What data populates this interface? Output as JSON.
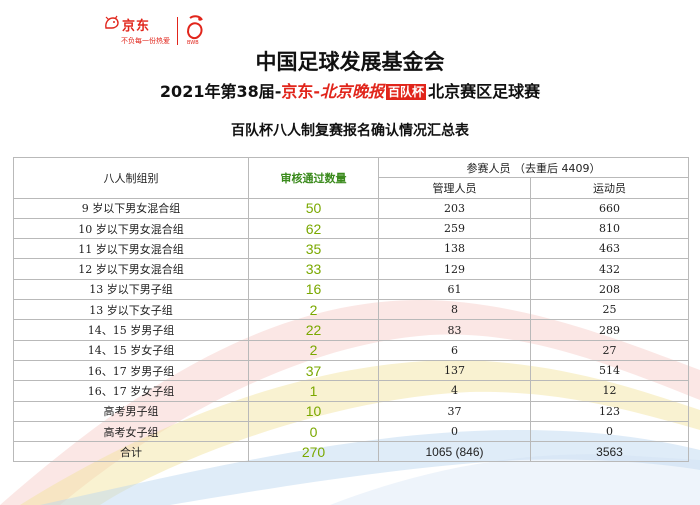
{
  "logos": {
    "jd_name": "京东",
    "jd_slogan": "不负每一份热爱",
    "bdb_sub": "BWB",
    "colors": {
      "brand_red": "#e1251b",
      "count_green": "#7aa800"
    }
  },
  "header": {
    "org": "中国足球发展基金会",
    "edition_prefix": "2021年第38届-",
    "sponsor1": "京东",
    "dash": "-",
    "sponsor2": "北京晚报",
    "sponsor3": "百队杯",
    "edition_suffix": "北京赛区足球赛",
    "table_title": "百队杯八人制复赛报名确认情况汇总表"
  },
  "table": {
    "headers": {
      "group": "八人制组别",
      "approved": "审核通过数量",
      "participants": "参赛人员 （去重后 4409）",
      "managers": "管理人员",
      "athletes": "运动员"
    },
    "rows": [
      {
        "group": "9 岁以下男女混合组",
        "approved": "50",
        "managers": "203",
        "athletes": "660"
      },
      {
        "group": "10 岁以下男女混合组",
        "approved": "62",
        "managers": "259",
        "athletes": "810"
      },
      {
        "group": "11 岁以下男女混合组",
        "approved": "35",
        "managers": "138",
        "athletes": "463"
      },
      {
        "group": "12 岁以下男女混合组",
        "approved": "33",
        "managers": "129",
        "athletes": "432"
      },
      {
        "group": "13 岁以下男子组",
        "approved": "16",
        "managers": "61",
        "athletes": "208"
      },
      {
        "group": "13 岁以下女子组",
        "approved": "2",
        "managers": "8",
        "athletes": "25"
      },
      {
        "group": "14、15 岁男子组",
        "approved": "22",
        "managers": "83",
        "athletes": "289"
      },
      {
        "group": "14、15 岁女子组",
        "approved": "2",
        "managers": "6",
        "athletes": "27"
      },
      {
        "group": "16、17 岁男子组",
        "approved": "37",
        "managers": "137",
        "athletes": "514"
      },
      {
        "group": "16、17 岁女子组",
        "approved": "1",
        "managers": "4",
        "athletes": "12"
      },
      {
        "group": "高考男子组",
        "approved": "10",
        "managers": "37",
        "athletes": "123"
      },
      {
        "group": "高考女子组",
        "approved": "0",
        "managers": "0",
        "athletes": "0"
      }
    ],
    "total": {
      "label": "合计",
      "approved": "270",
      "managers": "1065 (846)",
      "athletes": "3563"
    }
  }
}
